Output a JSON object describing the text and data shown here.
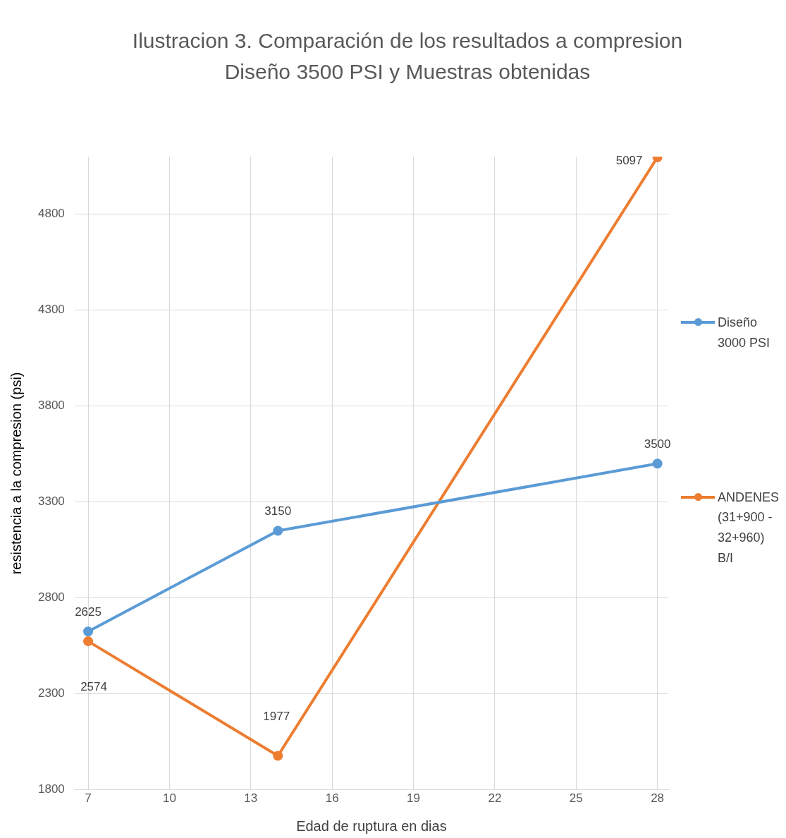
{
  "chart_data": {
    "type": "line",
    "title": "Ilustracion 3. Comparación de los resultados a compresion Diseño 3500 PSI y Muestras obtenidas",
    "xlabel": "Edad de ruptura en dias",
    "ylabel": "resistencia a la compresion (psi)",
    "x": [
      7,
      14,
      28
    ],
    "series": [
      {
        "name": "Diseño 3000 PSI",
        "color": "#5b9bd5",
        "values": [
          2625,
          3150,
          3500
        ]
      },
      {
        "name": "ANDENES (31+900 - 32+960) B/I",
        "color": "#ed7d31",
        "values": [
          2574,
          1977,
          5097
        ]
      }
    ],
    "xlim": [
      6.5,
      28.4
    ],
    "xticks": [
      7,
      10,
      13,
      16,
      19,
      22,
      25,
      28
    ],
    "ylim": [
      1800,
      5100
    ],
    "yticks": [
      1800,
      2300,
      2800,
      3300,
      3800,
      4300,
      4800
    ],
    "grid": true,
    "legend": "right",
    "marker": "circle",
    "line_style": "solid",
    "data_labels": true
  }
}
